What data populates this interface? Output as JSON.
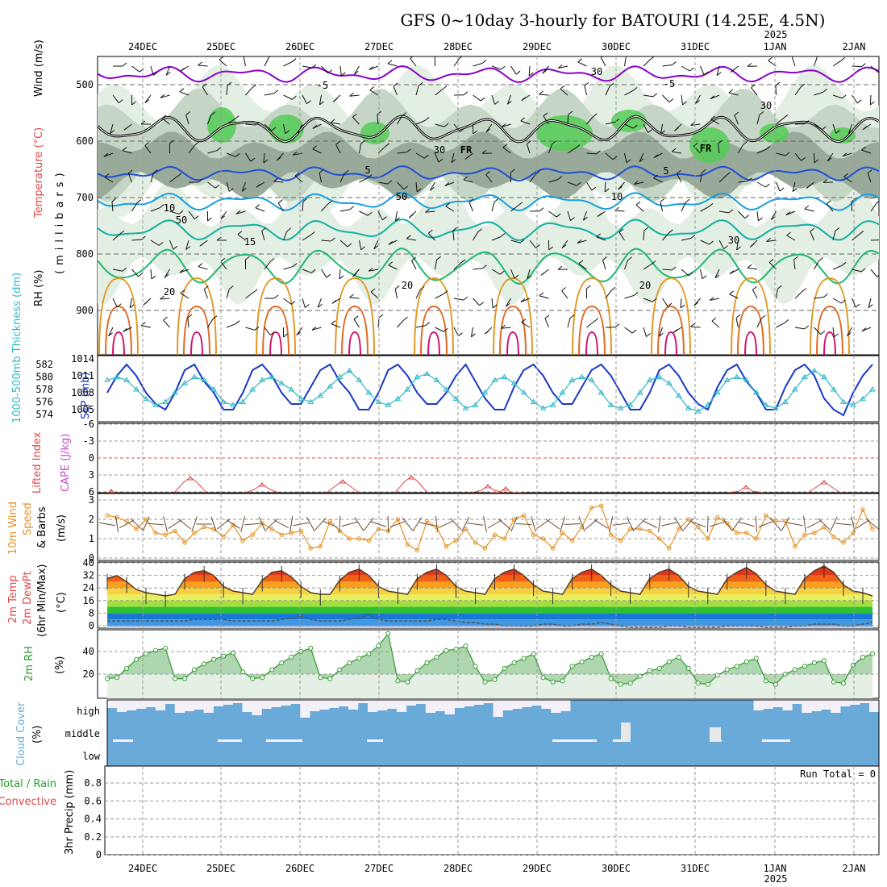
{
  "title": "GFS 0~10day 3-hourly for BATOURI (14.25E, 4.5N)",
  "date_labels": [
    "24DEC",
    "25DEC",
    "26DEC",
    "27DEC",
    "28DEC",
    "29DEC",
    "30DEC",
    "31DEC",
    "1JAN",
    "2JAN"
  ],
  "year_label": "2025",
  "colors": {
    "rh_dark": "#9aaa9a",
    "rh_mid": "#c6d6c6",
    "rh_light": "#e4efe4",
    "rh_green": "#55cc55",
    "purple": "#8800cc",
    "blue": "#1e50d8",
    "lightblue": "#18a0e0",
    "teal": "#10b0a0",
    "green20": "#20b870",
    "orange": "#e09820",
    "darkorange": "#e06820",
    "magenta": "#d0106a",
    "thickness": "#30b8c8",
    "slp": "#1838c8",
    "cape": "#cc44cc",
    "lifted": "#e04848",
    "wind10": "#e89020",
    "cloud": "#6aaad8",
    "rh2m": "#309a30",
    "precip_green": "#20a020"
  },
  "panels": {
    "upper": {
      "y_label": "(millibars)",
      "side_labels": [
        "RH (%)",
        "Temperature (°C)",
        "Wind (m/s)"
      ],
      "y_ticks": [
        "500",
        "600",
        "700",
        "800",
        "900"
      ],
      "contour_labels": [
        "-5",
        "5",
        "10",
        "15",
        "20",
        "FR",
        "30",
        "50"
      ]
    },
    "slp": {
      "left_label": "1000-500mb Thickness (dm)",
      "right_label": "SLP (mb)",
      "left_ticks": [
        "582",
        "580",
        "578",
        "576",
        "574"
      ],
      "right_ticks": [
        "1014",
        "1011",
        "1008",
        "1005"
      ]
    },
    "cape": {
      "left_label": "Lifted Index",
      "right_label": "CAPE (J/kg)",
      "ticks": [
        "-6",
        "-3",
        "0",
        "3",
        "6"
      ]
    },
    "wind10": {
      "side_label_1": "10m Wind",
      "side_label_2": "Speed",
      "side_label_3": "& Barbs",
      "unit": "(m/s)",
      "ticks": [
        "3",
        "2",
        "1",
        "0"
      ]
    },
    "temp2m": {
      "side_label_1": "2m Temp",
      "side_label_2": "2m DewPt",
      "side_label_3": "(6hr Min/Max)",
      "unit": "(°C)",
      "ticks": [
        "40",
        "32",
        "24",
        "16",
        "8",
        "0"
      ]
    },
    "rh2m": {
      "side_label": "2m RH",
      "unit": "(%)",
      "ticks": [
        "40",
        "20"
      ]
    },
    "cloud": {
      "side_label": "Cloud Cover",
      "unit": "(%)",
      "levels": [
        "high",
        "middle",
        "low"
      ]
    },
    "precip": {
      "side_label_1": "Total / Rain",
      "side_label_2": "Convective",
      "unit": "3hr Precip (mm)",
      "ticks": [
        "0.8",
        "0.6",
        "0.4",
        "0.2",
        "0"
      ],
      "run_total": "Run Total = 0"
    }
  },
  "chart_data": [
    {
      "type": "line",
      "name_panel": "slp_thickness",
      "series": [
        {
          "name": "SLP (mb)",
          "values": [
            1008,
            1011,
            1013,
            1011,
            1008,
            1006,
            1005,
            1008,
            1012,
            1013,
            1010,
            1008,
            1005,
            1005,
            1008,
            1012,
            1013,
            1011,
            1008,
            1006,
            1006,
            1009,
            1012,
            1013,
            1010,
            1008,
            1005,
            1005,
            1008,
            1012,
            1013,
            1011,
            1008,
            1006,
            1006,
            1008,
            1011,
            1013,
            1010,
            1007,
            1005,
            1005,
            1009,
            1012,
            1013,
            1011,
            1008,
            1006,
            1006,
            1009,
            1012,
            1013,
            1011,
            1008,
            1005,
            1005,
            1008,
            1012,
            1013,
            1011,
            1008,
            1006,
            1005,
            1009,
            1012,
            1013,
            1010,
            1008,
            1005,
            1005,
            1009,
            1012,
            1013,
            1011,
            1007,
            1005,
            1004,
            1008,
            1011,
            1013
          ]
        },
        {
          "name": "1000-500mb Thickness (dm)",
          "values": [
            579.5,
            580,
            579.5,
            578,
            576.5,
            575.5,
            576,
            577.5,
            579,
            580,
            579.5,
            578,
            576,
            575.5,
            576,
            578,
            579.5,
            580,
            579,
            578,
            576.5,
            576,
            577,
            578.5,
            580,
            581,
            579.5,
            577.5,
            576,
            575.5,
            576.5,
            578,
            580,
            580.5,
            579.5,
            578,
            576.5,
            575,
            575.5,
            577.5,
            579.5,
            580,
            579,
            577.5,
            576,
            575,
            575.5,
            577.5,
            579.5,
            580,
            579.5,
            577.5,
            575.5,
            575,
            575.5,
            577.5,
            579.5,
            580,
            579,
            577,
            575,
            574.5,
            575.5,
            577.5,
            579.5,
            580,
            579.5,
            577.5,
            575.5,
            575,
            576,
            578,
            580,
            581,
            580,
            578,
            576,
            575.5,
            576.5,
            578
          ]
        }
      ]
    },
    {
      "type": "line",
      "name_panel": "wind10m_speed",
      "series": [
        {
          "name": "10m wind speed (m/s)",
          "values": [
            2.2,
            2.1,
            1.9,
            1.5,
            2.0,
            1.3,
            1.2,
            1.4,
            0.8,
            1.3,
            1.6,
            1.5,
            1.1,
            1.7,
            0.9,
            1.2,
            1.8,
            1.5,
            1.2,
            1.3,
            1.4,
            0.5,
            0.6,
            1.9,
            1.4,
            1.0,
            1.0,
            0.9,
            1.5,
            1.4,
            2.0,
            0.7,
            0.4,
            1.9,
            1.6,
            0.6,
            0.9,
            1.5,
            0.8,
            0.5,
            1.2,
            1.0,
            2.0,
            2.2,
            1.2,
            1.0,
            0.5,
            1.3,
            0.9,
            1.6,
            2.6,
            2.7,
            1.2,
            0.9,
            1.5,
            1.5,
            1.4,
            1.0,
            0.5,
            1.5,
            2.0,
            1.6,
            1.0,
            2.1,
            1.8,
            1.3,
            1.3,
            1.0,
            2.2,
            1.9,
            1.9,
            0.6,
            1.2,
            1.3,
            1.6,
            1.1,
            0.8,
            1.3,
            2.5,
            1.5
          ]
        }
      ]
    },
    {
      "type": "area",
      "name_panel": "rh2m",
      "series": [
        {
          "name": "2m RH (%)",
          "values": [
            16,
            17,
            25,
            33,
            38,
            41,
            43,
            16,
            16,
            24,
            29,
            33,
            36,
            39,
            22,
            16,
            17,
            24,
            30,
            35,
            40,
            43,
            17,
            16,
            24,
            30,
            34,
            38,
            45,
            56,
            14,
            13,
            23,
            30,
            35,
            41,
            42,
            45,
            27,
            13,
            15,
            25,
            30,
            34,
            38,
            17,
            13,
            14,
            27,
            31,
            35,
            38,
            16,
            11,
            12,
            18,
            23,
            25,
            31,
            35,
            25,
            12,
            11,
            19,
            24,
            27,
            31,
            34,
            14,
            11,
            20,
            24,
            27,
            30,
            32,
            13,
            12,
            28,
            35,
            38
          ]
        }
      ]
    },
    {
      "type": "area",
      "name_panel": "temp2m",
      "series": [
        {
          "name": "2m Temp (°C)",
          "values": [
            30,
            32,
            28,
            23,
            21,
            20,
            19,
            20,
            30,
            34,
            35,
            32,
            25,
            22,
            21,
            20,
            29,
            34,
            35,
            31,
            25,
            21,
            20,
            20,
            29,
            34,
            36,
            32,
            25,
            22,
            21,
            20,
            30,
            34,
            36,
            32,
            25,
            22,
            21,
            20,
            30,
            34,
            36,
            32,
            26,
            22,
            21,
            20,
            30,
            34,
            36,
            32,
            26,
            22,
            21,
            20,
            30,
            34,
            36,
            32,
            25,
            22,
            21,
            20,
            30,
            34,
            37,
            33,
            26,
            22,
            21,
            20,
            30,
            35,
            38,
            34,
            26,
            22,
            21,
            19
          ]
        },
        {
          "name": "2m DewPt (°C)",
          "values": [
            3,
            3,
            3,
            3,
            3,
            3,
            3,
            3,
            3,
            4,
            4,
            4,
            4,
            3,
            3,
            3,
            3,
            3,
            4,
            5,
            6,
            4,
            3,
            3,
            3,
            4,
            5,
            7,
            4,
            3,
            3,
            3,
            3,
            3,
            4,
            4,
            3,
            2,
            2,
            1,
            1,
            0,
            0,
            0,
            0,
            1,
            1,
            0,
            0,
            1,
            1,
            2,
            1,
            0,
            -1,
            -1,
            -1,
            -1,
            0,
            0,
            -1,
            -1,
            -1,
            -1,
            0,
            0,
            0,
            0,
            -1,
            -1,
            -1,
            0,
            0,
            1,
            1,
            1,
            0,
            0,
            1,
            2
          ]
        }
      ]
    }
  ]
}
